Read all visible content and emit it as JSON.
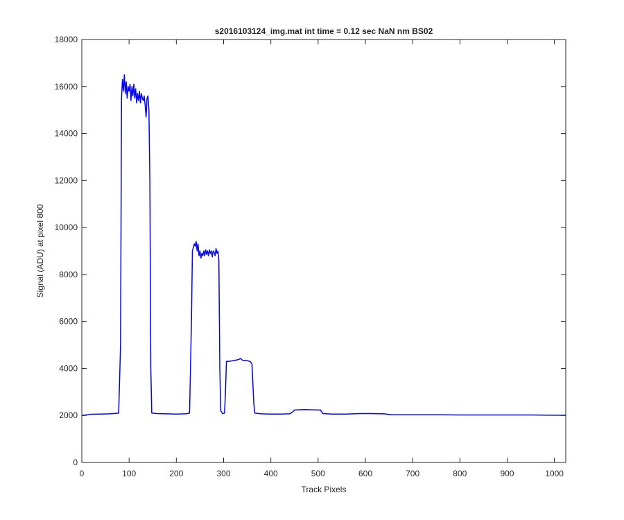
{
  "chart_data": {
    "type": "line",
    "title": "s2016103124_img.mat int time = 0.12 sec  NaN nm BS02",
    "xlabel": "Track Pixels",
    "ylabel": "Signal (ADU) at pixel 800",
    "xlim": [
      0,
      1024
    ],
    "xticks": [
      0,
      100,
      200,
      300,
      400,
      500,
      600,
      700,
      800,
      900,
      1000
    ],
    "ylim": [
      0,
      18000
    ],
    "yticks": [
      0,
      2000,
      4000,
      6000,
      8000,
      10000,
      12000,
      14000,
      16000,
      18000
    ],
    "grid": false,
    "x": [
      0,
      20,
      40,
      60,
      78,
      82,
      84,
      86,
      88,
      90,
      92,
      94,
      96,
      98,
      100,
      102,
      104,
      106,
      108,
      110,
      112,
      114,
      116,
      118,
      120,
      122,
      124,
      126,
      128,
      130,
      132,
      134,
      136,
      138,
      140,
      142,
      144,
      146,
      148,
      160,
      180,
      200,
      220,
      228,
      232,
      234,
      238,
      240,
      242,
      244,
      246,
      248,
      250,
      252,
      254,
      256,
      258,
      260,
      262,
      264,
      266,
      268,
      270,
      272,
      274,
      276,
      278,
      280,
      282,
      284,
      286,
      288,
      290,
      292,
      294,
      298,
      302,
      304,
      306,
      310,
      320,
      330,
      336,
      340,
      350,
      356,
      360,
      364,
      366,
      380,
      400,
      420,
      440,
      446,
      450,
      470,
      490,
      505,
      510,
      530,
      560,
      590,
      610,
      640,
      655,
      700,
      750,
      800,
      850,
      900,
      950,
      1000,
      1024
    ],
    "series": [
      {
        "name": "Signal",
        "color": "#0000ff",
        "values": [
          2000,
          2050,
          2060,
          2070,
          2100,
          5000,
          15500,
          16300,
          15800,
          16500,
          15700,
          16200,
          15500,
          16000,
          15800,
          16100,
          15400,
          16000,
          15600,
          16100,
          15500,
          15900,
          15300,
          15700,
          15400,
          15800,
          15300,
          15700,
          15500,
          15400,
          15600,
          15200,
          14700,
          15500,
          15600,
          15000,
          12000,
          4000,
          2100,
          2080,
          2070,
          2060,
          2070,
          2100,
          6000,
          9000,
          9300,
          9200,
          9400,
          9000,
          9300,
          8800,
          9000,
          8700,
          8900,
          8800,
          9000,
          8800,
          9050,
          8850,
          9000,
          8800,
          9050,
          8900,
          9000,
          8750,
          9000,
          8950,
          8800,
          9100,
          8900,
          9000,
          8600,
          4000,
          2200,
          2080,
          2100,
          3000,
          4300,
          4300,
          4330,
          4370,
          4420,
          4350,
          4330,
          4300,
          4200,
          2500,
          2100,
          2070,
          2060,
          2060,
          2070,
          2150,
          2230,
          2250,
          2240,
          2230,
          2080,
          2060,
          2060,
          2080,
          2080,
          2070,
          2030,
          2030,
          2030,
          2020,
          2020,
          2020,
          2020,
          2010,
          2010
        ]
      }
    ]
  }
}
